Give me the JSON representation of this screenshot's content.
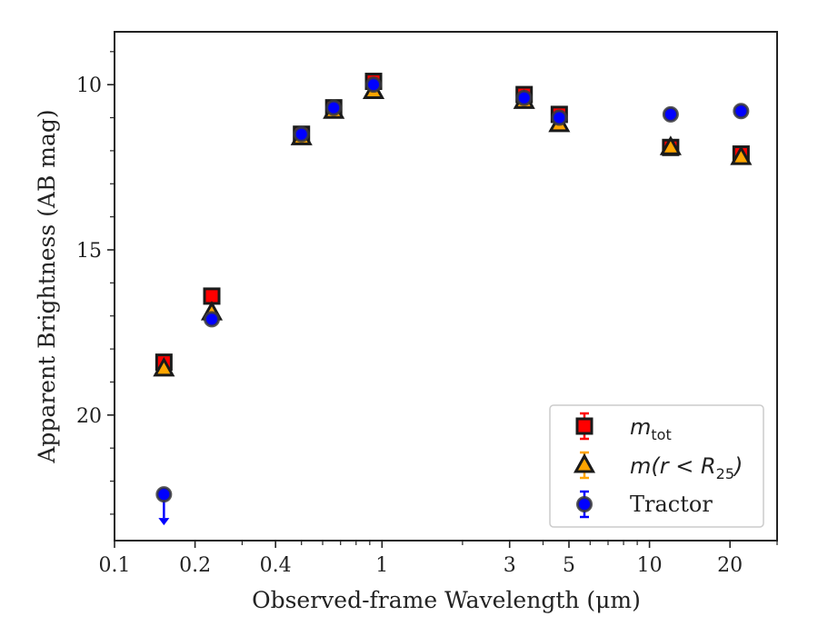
{
  "chart_data": {
    "type": "scatter",
    "xlabel": "Observed-frame Wavelength (μm)",
    "ylabel": "Apparent Brightness (AB mag)",
    "xscale": "log",
    "xlim": [
      0.1,
      30
    ],
    "ylim": [
      23.8,
      8.4
    ],
    "y_inverted": true,
    "x_ticks": [
      {
        "value": 0.1,
        "label": "0.1"
      },
      {
        "value": 0.2,
        "label": "0.2"
      },
      {
        "value": 0.4,
        "label": "0.4"
      },
      {
        "value": 1,
        "label": "1"
      },
      {
        "value": 3,
        "label": "3"
      },
      {
        "value": 5,
        "label": "5"
      },
      {
        "value": 10,
        "label": "10"
      },
      {
        "value": 20,
        "label": "20"
      }
    ],
    "y_ticks": [
      {
        "value": 10,
        "label": "10"
      },
      {
        "value": 15,
        "label": "15"
      },
      {
        "value": 20,
        "label": "20"
      }
    ],
    "grid": false,
    "legend_position": "bottom-right",
    "series": [
      {
        "name": "m_tot",
        "marker": "square",
        "color": "#ff0000",
        "edge_color": "#1a1a1a",
        "points": [
          {
            "x": 0.153,
            "y": 18.4
          },
          {
            "x": 0.231,
            "y": 16.4
          },
          {
            "x": 0.5,
            "y": 11.5
          },
          {
            "x": 0.66,
            "y": 10.7
          },
          {
            "x": 0.93,
            "y": 9.9
          },
          {
            "x": 3.4,
            "y": 10.3
          },
          {
            "x": 4.6,
            "y": 10.9
          },
          {
            "x": 12.0,
            "y": 11.9
          },
          {
            "x": 22.0,
            "y": 12.1
          }
        ]
      },
      {
        "name": "m(r<R25)",
        "marker": "triangle",
        "color": "#ffa500",
        "edge_color": "#1a1a1a",
        "points": [
          {
            "x": 0.153,
            "y": 18.6
          },
          {
            "x": 0.231,
            "y": 16.9
          },
          {
            "x": 0.5,
            "y": 11.6
          },
          {
            "x": 0.66,
            "y": 10.8
          },
          {
            "x": 0.93,
            "y": 10.2
          },
          {
            "x": 3.4,
            "y": 10.5
          },
          {
            "x": 4.6,
            "y": 11.2
          },
          {
            "x": 12.0,
            "y": 11.9
          },
          {
            "x": 22.0,
            "y": 12.2
          }
        ]
      },
      {
        "name": "Tractor",
        "marker": "circle",
        "color": "#0000ff",
        "edge_color": "#3a3a3a",
        "points": [
          {
            "x": 0.153,
            "y": 22.4,
            "upper_limit": true
          },
          {
            "x": 0.231,
            "y": 17.1
          },
          {
            "x": 0.5,
            "y": 11.5
          },
          {
            "x": 0.66,
            "y": 10.7
          },
          {
            "x": 0.93,
            "y": 10.0
          },
          {
            "x": 3.4,
            "y": 10.4
          },
          {
            "x": 4.6,
            "y": 11.0
          },
          {
            "x": 12.0,
            "y": 10.9
          },
          {
            "x": 22.0,
            "y": 10.8
          }
        ]
      }
    ],
    "legend": [
      {
        "main": "m",
        "sub": "tot",
        "suffix": "",
        "italic": true
      },
      {
        "main": "m(r < R",
        "sub": "25",
        "suffix": ")",
        "italic": true
      },
      {
        "main": "Tractor",
        "sub": "",
        "suffix": "",
        "italic": false
      }
    ]
  }
}
